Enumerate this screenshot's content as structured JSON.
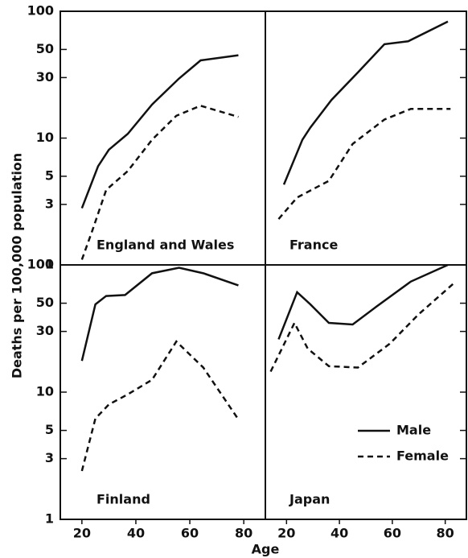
{
  "figure": {
    "xlabel": "Age",
    "ylabel": "Deaths per 100,000 population"
  },
  "chart_data": [
    {
      "type": "line",
      "title": "England and Wales",
      "xlim": [
        12,
        88
      ],
      "ylim": [
        1,
        100
      ],
      "log_y": true,
      "xticks": [
        20,
        40,
        60,
        80
      ],
      "yticks": [
        1,
        3,
        5,
        10,
        30,
        50,
        100
      ],
      "series": [
        {
          "name": "Male",
          "color": "#111111",
          "dash": false,
          "x": [
            20,
            26,
            30,
            37,
            46,
            56,
            64,
            78
          ],
          "values": [
            2.8,
            6.0,
            8.1,
            10.8,
            18.4,
            29.5,
            41,
            45
          ]
        },
        {
          "name": "Female",
          "color": "#111111",
          "dash": true,
          "x": [
            20,
            24,
            29,
            37,
            46,
            55,
            64,
            78
          ],
          "values": [
            1.1,
            1.9,
            3.9,
            5.5,
            9.7,
            15,
            18,
            14.7
          ]
        }
      ]
    },
    {
      "type": "line",
      "title": "France",
      "xlim": [
        12,
        88
      ],
      "ylim": [
        1,
        100
      ],
      "log_y": true,
      "xticks": [
        20,
        40,
        60,
        80
      ],
      "yticks": [
        1,
        3,
        5,
        10,
        30,
        50,
        100
      ],
      "series": [
        {
          "name": "Male",
          "color": "#111111",
          "dash": false,
          "x": [
            19,
            26,
            29,
            37,
            47,
            57,
            66,
            81
          ],
          "values": [
            4.3,
            9.7,
            12.1,
            20,
            33,
            55,
            58,
            83
          ]
        },
        {
          "name": "Female",
          "color": "#111111",
          "dash": true,
          "x": [
            17,
            24,
            36,
            45,
            57,
            67,
            82
          ],
          "values": [
            2.3,
            3.4,
            4.6,
            9,
            14,
            17,
            17
          ]
        }
      ]
    },
    {
      "type": "line",
      "title": "Finland",
      "xlim": [
        12,
        88
      ],
      "ylim": [
        1,
        100
      ],
      "log_y": true,
      "xticks": [
        20,
        40,
        60,
        80
      ],
      "yticks": [
        1,
        3,
        5,
        10,
        30,
        50,
        100
      ],
      "series": [
        {
          "name": "Male",
          "color": "#111111",
          "dash": false,
          "x": [
            20,
            25,
            29,
            36,
            46,
            56,
            65,
            78
          ],
          "values": [
            17.6,
            49,
            57,
            58,
            86,
            95,
            86,
            69
          ]
        },
        {
          "name": "Female",
          "color": "#111111",
          "dash": true,
          "x": [
            20,
            25,
            30,
            37,
            46,
            55,
            65,
            78
          ],
          "values": [
            2.4,
            6.2,
            8,
            9.6,
            12.5,
            25,
            15.6,
            6.1
          ]
        }
      ]
    },
    {
      "type": "line",
      "title": "Japan",
      "xlim": [
        12,
        88
      ],
      "ylim": [
        1,
        100
      ],
      "log_y": true,
      "legend": "lower right",
      "xticks": [
        20,
        40,
        60,
        80
      ],
      "yticks": [
        1,
        3,
        5,
        10,
        30,
        50,
        100
      ],
      "series": [
        {
          "name": "Male",
          "color": "#111111",
          "dash": false,
          "x": [
            17,
            24,
            29,
            36,
            45,
            54,
            67,
            81
          ],
          "values": [
            26,
            61,
            49,
            35,
            34,
            47,
            74,
            100
          ]
        },
        {
          "name": "Female",
          "color": "#111111",
          "dash": true,
          "x": [
            14,
            23,
            28,
            36,
            47,
            59,
            70,
            84
          ],
          "values": [
            14.5,
            35,
            22,
            16,
            15.6,
            24,
            41,
            74
          ]
        }
      ]
    }
  ]
}
